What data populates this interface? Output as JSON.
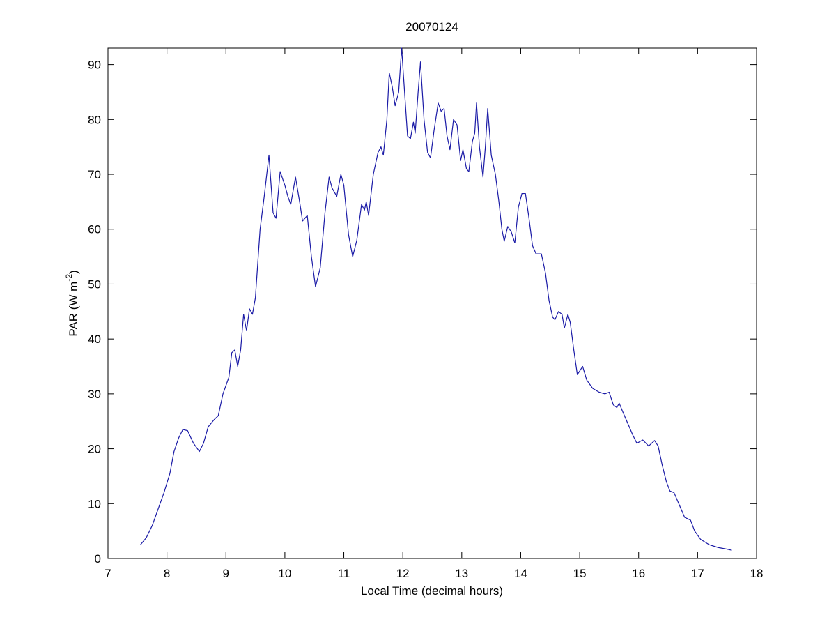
{
  "chart_data": {
    "type": "line",
    "title": "20070124",
    "xlabel": "Local Time (decimal hours)",
    "ylabel": [
      "PAR (W m",
      "-2",
      ")"
    ],
    "color": "#1a1aa6",
    "xlim": [
      7,
      18
    ],
    "ylim": [
      0,
      93
    ],
    "xticks": [
      7,
      8,
      9,
      10,
      11,
      12,
      13,
      14,
      15,
      16,
      17,
      18
    ],
    "yticks": [
      0,
      10,
      20,
      30,
      40,
      50,
      60,
      70,
      80,
      90
    ],
    "x": [
      7.55,
      7.65,
      7.75,
      7.85,
      7.95,
      8.05,
      8.12,
      8.2,
      8.27,
      8.35,
      8.45,
      8.55,
      8.62,
      8.7,
      8.8,
      8.87,
      8.95,
      9.05,
      9.1,
      9.15,
      9.2,
      9.25,
      9.3,
      9.35,
      9.4,
      9.45,
      9.5,
      9.58,
      9.65,
      9.73,
      9.8,
      9.85,
      9.92,
      10.0,
      10.05,
      10.1,
      10.18,
      10.25,
      10.3,
      10.38,
      10.45,
      10.52,
      10.6,
      10.68,
      10.75,
      10.8,
      10.88,
      10.95,
      11.0,
      11.08,
      11.15,
      11.22,
      11.3,
      11.35,
      11.38,
      11.42,
      11.5,
      11.58,
      11.63,
      11.67,
      11.73,
      11.77,
      11.82,
      11.87,
      11.93,
      11.98,
      12.03,
      12.08,
      12.13,
      12.18,
      12.21,
      12.26,
      12.3,
      12.36,
      12.42,
      12.47,
      12.53,
      12.6,
      12.65,
      12.7,
      12.75,
      12.8,
      12.86,
      12.92,
      12.98,
      13.02,
      13.08,
      13.12,
      13.18,
      13.22,
      13.25,
      13.3,
      13.36,
      13.4,
      13.44,
      13.5,
      13.57,
      13.63,
      13.68,
      13.72,
      13.78,
      13.84,
      13.9,
      13.96,
      14.02,
      14.08,
      14.14,
      14.2,
      14.26,
      14.35,
      14.42,
      14.48,
      14.54,
      14.58,
      14.64,
      14.7,
      14.74,
      14.8,
      14.84,
      14.9,
      14.96,
      15.05,
      15.12,
      15.22,
      15.33,
      15.43,
      15.5,
      15.57,
      15.63,
      15.67,
      15.72,
      15.8,
      15.9,
      15.97,
      16.07,
      16.17,
      16.27,
      16.33,
      16.4,
      16.47,
      16.53,
      16.6,
      16.68,
      16.78,
      16.88,
      16.95,
      17.05,
      17.2,
      17.35,
      17.5,
      17.58
    ],
    "values": [
      2.5,
      3.8,
      6,
      9,
      12,
      15.5,
      19.5,
      22,
      23.5,
      23.3,
      21,
      19.5,
      21,
      24,
      25.3,
      26,
      30,
      33,
      37.5,
      38,
      35,
      38,
      44.5,
      41.5,
      45.5,
      44.5,
      47.5,
      60,
      66,
      73.5,
      63,
      62,
      70.5,
      68,
      66,
      64.5,
      69.5,
      65,
      61.5,
      62.5,
      55,
      49.5,
      53,
      63,
      69.5,
      67.5,
      66,
      70,
      68,
      59,
      55,
      58,
      64.5,
      63.5,
      65,
      62.5,
      70,
      74,
      75,
      73.5,
      80,
      88.5,
      86,
      82.5,
      85,
      93,
      85,
      77,
      76.5,
      79.5,
      77.5,
      85,
      90.5,
      80,
      74,
      73,
      78,
      83,
      81.5,
      82,
      77,
      74.5,
      80,
      79,
      72.5,
      74.5,
      71,
      70.5,
      76,
      77.5,
      83,
      75,
      69.5,
      75,
      82,
      73.5,
      70,
      65,
      60,
      57.8,
      60.5,
      59.5,
      57.5,
      64,
      66.5,
      66.5,
      62,
      57,
      55.5,
      55.5,
      52,
      47,
      44,
      43.5,
      45,
      44.5,
      42,
      44.5,
      43,
      38,
      33.5,
      35,
      32.5,
      31,
      30.3,
      30,
      30.3,
      28,
      27.5,
      28.3,
      27,
      25,
      22.5,
      21,
      21.6,
      20.5,
      21.5,
      20.5,
      17,
      14,
      12.3,
      12,
      10,
      7.5,
      7,
      5,
      3.5,
      2.5,
      2,
      1.7,
      1.5
    ]
  }
}
